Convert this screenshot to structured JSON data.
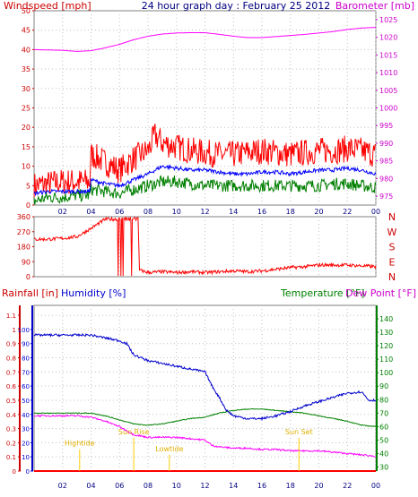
{
  "chart_data": [
    {
      "type": "line",
      "panel": "wind-barometer",
      "title": "24 hour graph day : February 25 2012",
      "ylabel_left": "Windspeed [mph]",
      "ylabel_right": "Barometer [mb]",
      "x_ticks": [
        "02",
        "04",
        "06",
        "08",
        "10",
        "12",
        "14",
        "16",
        "18",
        "20",
        "22",
        "00"
      ],
      "x_range_hours": [
        0,
        24
      ],
      "y_left_ticks": [
        "0",
        "5",
        "10",
        "15",
        "20",
        "25",
        "30",
        "35",
        "40",
        "45",
        "50"
      ],
      "y_left_range": [
        0,
        50
      ],
      "y_right_ticks": [
        "975",
        "980",
        "985",
        "990",
        "995",
        "1000",
        "1005",
        "1010",
        "1015",
        "1020",
        "1025"
      ],
      "y_right_range": [
        972.5,
        1027.5
      ],
      "colors": {
        "windspeed": "#ff0000",
        "average": "#0000ff",
        "low": "#008000",
        "barometer": "#ff00ff"
      },
      "series": [
        {
          "name": "Barometer",
          "axis": "right",
          "x": [
            0,
            1,
            2,
            3,
            4,
            5,
            6,
            7,
            8,
            9,
            10,
            11,
            12,
            13,
            14,
            15,
            16,
            17,
            18,
            19,
            20,
            21,
            22,
            23,
            24
          ],
          "values": [
            1016.5,
            1016.4,
            1016.3,
            1016.0,
            1016.2,
            1017.0,
            1018.0,
            1019.3,
            1020.3,
            1020.9,
            1021.2,
            1021.3,
            1021.3,
            1020.8,
            1020.3,
            1019.9,
            1019.9,
            1020.2,
            1020.5,
            1020.8,
            1021.2,
            1021.6,
            1022.2,
            1022.6,
            1022.8
          ]
        },
        {
          "name": "Wind gust",
          "axis": "left",
          "x": [
            0,
            1,
            2,
            3,
            3.9,
            4,
            5,
            6,
            7,
            8,
            8.5,
            9,
            10,
            11,
            12,
            13,
            14,
            15,
            16,
            17,
            18,
            19,
            20,
            21,
            22,
            23,
            24
          ],
          "values": [
            5,
            5.5,
            6,
            6,
            6,
            13,
            11,
            9,
            12,
            14,
            18,
            16,
            15,
            14,
            13.5,
            13,
            13,
            13.5,
            14,
            13.5,
            13,
            13.5,
            14,
            14,
            14.5,
            14,
            13
          ]
        },
        {
          "name": "Wind average",
          "axis": "left",
          "x": [
            0,
            1,
            2,
            3,
            3.9,
            4,
            5,
            6,
            7,
            8,
            9,
            10,
            11,
            12,
            13,
            14,
            15,
            16,
            17,
            18,
            19,
            20,
            21,
            22,
            23,
            24
          ],
          "values": [
            3,
            3.5,
            3.5,
            3.5,
            3.5,
            6.5,
            5.5,
            5,
            6.5,
            8,
            10,
            9.5,
            9,
            9,
            8.5,
            8,
            8,
            8.5,
            8.5,
            8,
            8.5,
            9,
            9,
            9.5,
            9,
            8
          ]
        },
        {
          "name": "Wind low",
          "axis": "left",
          "x": [
            0,
            1,
            2,
            3,
            3.9,
            4,
            5,
            6,
            7,
            8,
            9,
            10,
            11,
            12,
            13,
            14,
            15,
            16,
            17,
            18,
            19,
            20,
            21,
            22,
            23,
            24
          ],
          "values": [
            1,
            2,
            2,
            2.5,
            2.5,
            4,
            3.5,
            3,
            4,
            5,
            6,
            6,
            5.5,
            5,
            5,
            5,
            5,
            5,
            5,
            5,
            5,
            5,
            5.5,
            5.5,
            5,
            4.5
          ]
        }
      ]
    },
    {
      "type": "line",
      "panel": "wind-direction",
      "x_ticks": [
        "02",
        "04",
        "06",
        "08",
        "10",
        "12",
        "14",
        "16",
        "18",
        "20",
        "22",
        "00"
      ],
      "y_ticks": [
        "0",
        "90",
        "180",
        "270",
        "360"
      ],
      "y_range": [
        0,
        360
      ],
      "compass_labels": [
        "N",
        "W",
        "S",
        "E",
        "N"
      ],
      "color": "#ff0000",
      "series": [
        {
          "name": "Wind direction",
          "x": [
            0,
            1,
            2,
            3,
            4,
            5,
            5.8,
            7.3,
            7.4,
            8,
            9,
            10,
            11,
            12,
            13,
            14,
            15,
            16,
            17,
            18,
            19,
            20,
            21,
            22,
            23,
            24
          ],
          "values": [
            225,
            225,
            230,
            240,
            290,
            345,
            345,
            345,
            40,
            25,
            30,
            25,
            30,
            25,
            30,
            35,
            30,
            35,
            45,
            55,
            60,
            70,
            70,
            70,
            65,
            60
          ]
        }
      ]
    },
    {
      "type": "line",
      "panel": "rain-humidity-temperature",
      "labels": {
        "rainfall": "Rainfall [in]",
        "humidity": "Humidity [%]",
        "temperature": "Temperature [°F]",
        "dewpoint": "Dew Point [°F]"
      },
      "x_ticks": [
        "02",
        "04",
        "06",
        "08",
        "10",
        "12",
        "14",
        "16",
        "18",
        "20",
        "22",
        "00"
      ],
      "y_rain_ticks": [
        "0",
        "0.1",
        "0.2",
        "0.3",
        "0.4",
        "0.5",
        "0.6",
        "0.7",
        "0.8",
        "0.9",
        "1",
        "1.1"
      ],
      "y_humidity_ticks": [
        "0",
        "10",
        "20",
        "30",
        "40",
        "50",
        "60",
        "70",
        "80",
        "90",
        "100"
      ],
      "y_temp_ticks": [
        "30",
        "40",
        "50",
        "60",
        "70",
        "80",
        "90",
        "100",
        "110",
        "120",
        "130",
        "140"
      ],
      "rain_range": [
        0,
        1.17
      ],
      "temp_range": [
        27,
        150
      ],
      "colors": {
        "humidity": "#0000cc",
        "temperature": "#008000",
        "dewpoint": "#ff00ff",
        "rainfall": "#ff0000",
        "markers": "#ffcc00"
      },
      "series": [
        {
          "name": "Humidity",
          "axis": "humidity",
          "x": [
            0,
            1,
            2,
            3,
            4,
            5,
            6,
            6.5,
            7,
            7.5,
            8,
            9,
            10,
            11,
            12,
            12.5,
            13,
            13.5,
            14,
            15,
            16,
            17,
            18,
            19,
            20,
            21,
            22,
            23,
            23.5,
            24
          ],
          "values": [
            96,
            96,
            96,
            96,
            96,
            94,
            92,
            90,
            82,
            80,
            78,
            76,
            74,
            72,
            70,
            60,
            52,
            43,
            39,
            37,
            37,
            39,
            42,
            46,
            49,
            52,
            55,
            56,
            50,
            50
          ]
        },
        {
          "name": "Temperature",
          "axis": "temp",
          "x": [
            0,
            1,
            2,
            3,
            4,
            5,
            6,
            7,
            8,
            9,
            10,
            11,
            12,
            13,
            14,
            15,
            16,
            17,
            18,
            19,
            20,
            21,
            22,
            23,
            24
          ],
          "values": [
            70,
            70,
            70,
            70,
            70,
            68,
            65,
            62,
            61,
            62,
            64,
            66,
            67,
            70,
            72,
            73,
            73,
            72,
            71,
            70,
            68,
            66,
            64,
            61,
            60
          ]
        },
        {
          "name": "Dew Point",
          "axis": "temp",
          "x": [
            0,
            1,
            2,
            3,
            4,
            5,
            6,
            7,
            8,
            9,
            10,
            11,
            12,
            12.5,
            13,
            14,
            15,
            16,
            17,
            18,
            19,
            20,
            21,
            22,
            23,
            24
          ],
          "values": [
            68,
            68,
            68,
            68,
            67,
            64,
            60,
            54,
            52,
            52,
            52,
            51,
            50,
            46,
            45,
            44,
            44,
            43,
            43,
            42,
            42,
            42,
            41,
            40,
            39,
            38
          ]
        },
        {
          "name": "Rainfall",
          "axis": "rain",
          "x": [
            0,
            24
          ],
          "values": [
            0,
            0
          ]
        }
      ],
      "annotations": [
        {
          "text": "Hightide",
          "x": 3.2,
          "y_humidity": 18
        },
        {
          "text": "Sun Rise",
          "x": 7.0,
          "y_humidity": 26
        },
        {
          "text": "Lowtide",
          "x": 9.5,
          "y_humidity": 14
        },
        {
          "text": "Sun Set",
          "x": 18.6,
          "y_humidity": 26
        }
      ]
    }
  ]
}
